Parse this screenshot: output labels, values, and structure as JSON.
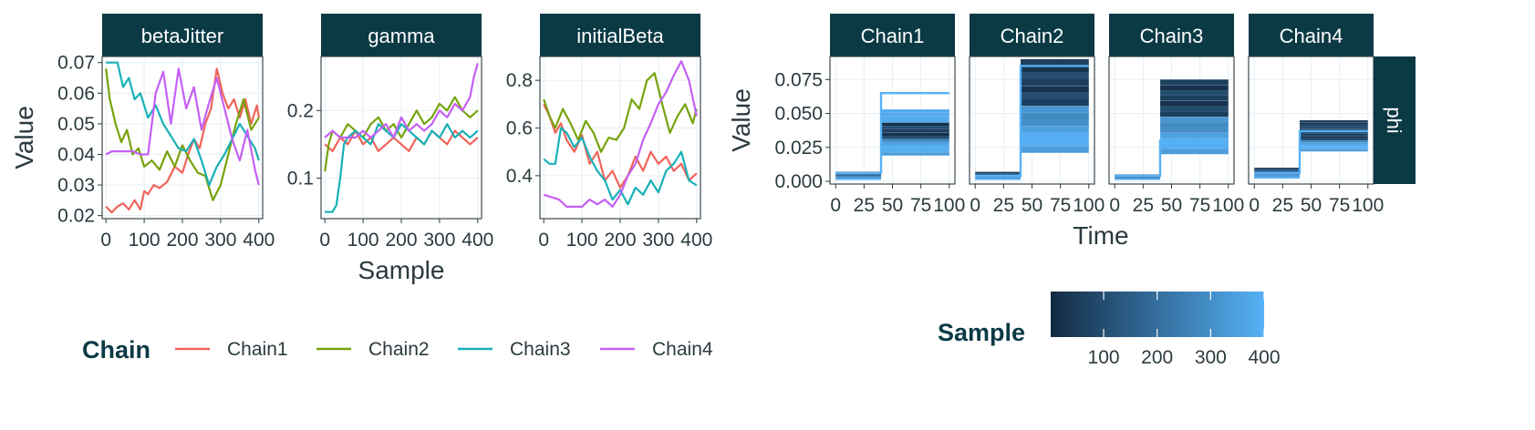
{
  "chart_data": [
    {
      "type": "line",
      "facet_by": "parameter",
      "panels": [
        {
          "strip": "betaJitter",
          "ylim": [
            0.019,
            0.072
          ],
          "yticks": [
            0.02,
            0.03,
            0.04,
            0.05,
            0.06,
            0.07
          ],
          "ytick_labels": [
            "0.02",
            "0.03",
            "0.04",
            "0.05",
            "0.06",
            "0.07"
          ]
        },
        {
          "strip": "gamma",
          "ylim": [
            0.04,
            0.28
          ],
          "yticks": [
            0.1,
            0.2
          ],
          "ytick_labels": [
            "0.1",
            "0.2"
          ]
        },
        {
          "strip": "initialBeta",
          "ylim": [
            0.22,
            0.9
          ],
          "yticks": [
            0.4,
            0.6,
            0.8
          ],
          "ytick_labels": [
            "0.4",
            "0.6",
            "0.8"
          ]
        }
      ],
      "xlim": [
        -10,
        410
      ],
      "xticks": [
        0,
        100,
        200,
        300,
        400
      ],
      "xtick_labels": [
        "0",
        "100",
        "200",
        "300",
        "400"
      ],
      "xlabel": "Sample",
      "ylabel": "Value",
      "legend": {
        "title": "Chain",
        "position": "bottom"
      },
      "series": [
        {
          "name": "Chain1",
          "color": "#F0645A",
          "panels": [
            {
              "x": [
                0,
                15,
                30,
                45,
                60,
                75,
                90,
                100,
                110,
                125,
                140,
                160,
                180,
                200,
                215,
                230,
                245,
                260,
                275,
                290,
                305,
                320,
                335,
                350,
                365,
                380,
                395,
                400
              ],
              "y": [
                0.023,
                0.021,
                0.023,
                0.024,
                0.022,
                0.025,
                0.022,
                0.028,
                0.027,
                0.03,
                0.029,
                0.031,
                0.036,
                0.034,
                0.04,
                0.045,
                0.042,
                0.05,
                0.055,
                0.068,
                0.06,
                0.055,
                0.058,
                0.052,
                0.058,
                0.05,
                0.056,
                0.052
              ]
            },
            {
              "x": [
                0,
                20,
                40,
                60,
                80,
                100,
                120,
                140,
                160,
                180,
                200,
                220,
                240,
                260,
                280,
                300,
                320,
                340,
                360,
                380,
                400
              ],
              "y": [
                0.15,
                0.14,
                0.16,
                0.15,
                0.17,
                0.15,
                0.16,
                0.14,
                0.15,
                0.16,
                0.15,
                0.14,
                0.16,
                0.15,
                0.17,
                0.16,
                0.15,
                0.17,
                0.16,
                0.15,
                0.16
              ]
            },
            {
              "x": [
                0,
                15,
                30,
                45,
                60,
                80,
                100,
                120,
                140,
                160,
                180,
                200,
                220,
                240,
                260,
                280,
                300,
                320,
                340,
                360,
                380,
                400
              ],
              "y": [
                0.7,
                0.65,
                0.58,
                0.62,
                0.55,
                0.5,
                0.57,
                0.45,
                0.5,
                0.38,
                0.42,
                0.35,
                0.4,
                0.48,
                0.42,
                0.5,
                0.45,
                0.48,
                0.42,
                0.45,
                0.38,
                0.41
              ]
            }
          ]
        },
        {
          "name": "Chain2",
          "color": "#76A30C",
          "panels": [
            {
              "x": [
                0,
                10,
                25,
                40,
                55,
                70,
                85,
                100,
                120,
                140,
                160,
                180,
                200,
                220,
                240,
                260,
                280,
                300,
                320,
                340,
                360,
                380,
                400
              ],
              "y": [
                0.068,
                0.058,
                0.05,
                0.044,
                0.048,
                0.04,
                0.042,
                0.036,
                0.038,
                0.035,
                0.041,
                0.036,
                0.043,
                0.038,
                0.034,
                0.033,
                0.025,
                0.03,
                0.04,
                0.05,
                0.058,
                0.048,
                0.052
              ]
            },
            {
              "x": [
                0,
                10,
                20,
                40,
                60,
                80,
                100,
                120,
                140,
                160,
                180,
                200,
                220,
                240,
                260,
                280,
                300,
                320,
                340,
                360,
                380,
                400
              ],
              "y": [
                0.11,
                0.15,
                0.17,
                0.16,
                0.18,
                0.17,
                0.16,
                0.18,
                0.19,
                0.17,
                0.18,
                0.16,
                0.18,
                0.2,
                0.18,
                0.19,
                0.21,
                0.2,
                0.22,
                0.2,
                0.19,
                0.2
              ]
            },
            {
              "x": [
                0,
                15,
                30,
                50,
                70,
                90,
                110,
                130,
                150,
                170,
                190,
                210,
                230,
                250,
                270,
                290,
                310,
                330,
                350,
                370,
                390,
                400
              ],
              "y": [
                0.72,
                0.65,
                0.6,
                0.68,
                0.62,
                0.55,
                0.63,
                0.58,
                0.5,
                0.56,
                0.55,
                0.6,
                0.72,
                0.68,
                0.8,
                0.83,
                0.7,
                0.58,
                0.65,
                0.7,
                0.62,
                0.68
              ]
            }
          ]
        },
        {
          "name": "Chain3",
          "color": "#18B0B8",
          "panels": [
            {
              "x": [
                0,
                15,
                30,
                45,
                60,
                75,
                90,
                110,
                130,
                150,
                170,
                190,
                210,
                230,
                250,
                270,
                290,
                310,
                330,
                350,
                370,
                390,
                400
              ],
              "y": [
                0.07,
                0.07,
                0.07,
                0.062,
                0.065,
                0.058,
                0.06,
                0.052,
                0.056,
                0.05,
                0.046,
                0.042,
                0.041,
                0.045,
                0.038,
                0.03,
                0.036,
                0.04,
                0.045,
                0.05,
                0.046,
                0.042,
                0.038
              ]
            },
            {
              "x": [
                0,
                10,
                20,
                30,
                40,
                50,
                60,
                80,
                100,
                120,
                140,
                160,
                180,
                200,
                220,
                240,
                260,
                280,
                300,
                320,
                340,
                360,
                380,
                400
              ],
              "y": [
                0.05,
                0.05,
                0.05,
                0.06,
                0.1,
                0.15,
                0.16,
                0.17,
                0.16,
                0.15,
                0.18,
                0.17,
                0.16,
                0.18,
                0.17,
                0.16,
                0.15,
                0.17,
                0.16,
                0.18,
                0.16,
                0.17,
                0.16,
                0.17
              ]
            },
            {
              "x": [
                0,
                15,
                30,
                45,
                60,
                80,
                100,
                120,
                140,
                160,
                180,
                200,
                220,
                240,
                260,
                280,
                300,
                320,
                340,
                360,
                380,
                400
              ],
              "y": [
                0.47,
                0.45,
                0.45,
                0.6,
                0.58,
                0.52,
                0.56,
                0.48,
                0.42,
                0.38,
                0.3,
                0.34,
                0.28,
                0.35,
                0.32,
                0.38,
                0.33,
                0.42,
                0.45,
                0.5,
                0.38,
                0.36
              ]
            }
          ]
        },
        {
          "name": "Chain4",
          "color": "#C460F5",
          "panels": [
            {
              "x": [
                0,
                15,
                30,
                50,
                70,
                90,
                110,
                130,
                150,
                170,
                190,
                210,
                230,
                250,
                270,
                290,
                310,
                330,
                350,
                370,
                390,
                400
              ],
              "y": [
                0.04,
                0.041,
                0.041,
                0.041,
                0.041,
                0.04,
                0.04,
                0.06,
                0.067,
                0.05,
                0.068,
                0.055,
                0.062,
                0.048,
                0.057,
                0.065,
                0.055,
                0.045,
                0.038,
                0.048,
                0.035,
                0.03
              ]
            },
            {
              "x": [
                0,
                20,
                40,
                60,
                80,
                100,
                120,
                140,
                160,
                180,
                200,
                220,
                240,
                260,
                280,
                300,
                320,
                340,
                360,
                380,
                390,
                400
              ],
              "y": [
                0.16,
                0.17,
                0.16,
                0.16,
                0.16,
                0.17,
                0.16,
                0.17,
                0.18,
                0.16,
                0.19,
                0.17,
                0.18,
                0.17,
                0.18,
                0.2,
                0.19,
                0.21,
                0.2,
                0.22,
                0.25,
                0.27
              ]
            },
            {
              "x": [
                0,
                20,
                40,
                60,
                80,
                100,
                120,
                140,
                160,
                180,
                200,
                220,
                240,
                260,
                280,
                300,
                320,
                340,
                360,
                380,
                400
              ],
              "y": [
                0.32,
                0.31,
                0.3,
                0.27,
                0.27,
                0.27,
                0.3,
                0.28,
                0.3,
                0.27,
                0.32,
                0.4,
                0.45,
                0.55,
                0.62,
                0.7,
                0.75,
                0.82,
                0.88,
                0.8,
                0.65
              ]
            }
          ]
        }
      ]
    },
    {
      "type": "line",
      "facet_by": "chain",
      "panels": [
        "Chain1",
        "Chain2",
        "Chain3",
        "Chain4"
      ],
      "row_strip": "phi",
      "xlim": [
        -5,
        105
      ],
      "xticks": [
        0,
        25,
        50,
        75,
        100
      ],
      "xtick_labels": [
        "0",
        "25",
        "50",
        "75",
        "100"
      ],
      "ylim": [
        -0.002,
        0.092
      ],
      "yticks": [
        0,
        0.025,
        0.05,
        0.075
      ],
      "ytick_labels": [
        "0.000",
        "0.025",
        "0.050",
        "0.075"
      ],
      "xlabel": "Time",
      "ylabel": "Value",
      "step_time": 40,
      "colorbar": {
        "title": "Sample",
        "min": 1,
        "max": 400,
        "ticks": [
          100,
          200,
          300,
          400
        ],
        "color_low": "#132B43",
        "color_high": "#56B1F7"
      },
      "bands": [
        {
          "panel": "Chain1",
          "early_min": 0.001,
          "early_max": 0.007,
          "late_min": 0.019,
          "late_max": 0.053,
          "highlight_early": 0.006,
          "highlight_late": 0.065,
          "dark_late_max": 0.042
        },
        {
          "panel": "Chain2",
          "early_min": 0.001,
          "early_max": 0.007,
          "late_min": 0.021,
          "late_max": 0.09,
          "highlight_early": 0.004,
          "highlight_late": 0.085,
          "dark_late_max": 0.09
        },
        {
          "panel": "Chain3",
          "early_min": 0.001,
          "early_max": 0.005,
          "late_min": 0.02,
          "late_max": 0.075,
          "highlight_early": 0.004,
          "highlight_late": 0.03,
          "dark_late_max": 0.075
        },
        {
          "panel": "Chain4",
          "early_min": 0.002,
          "early_max": 0.01,
          "late_min": 0.022,
          "late_max": 0.045,
          "highlight_early": 0.006,
          "highlight_late": 0.037,
          "dark_late_max": 0.038
        }
      ]
    }
  ]
}
